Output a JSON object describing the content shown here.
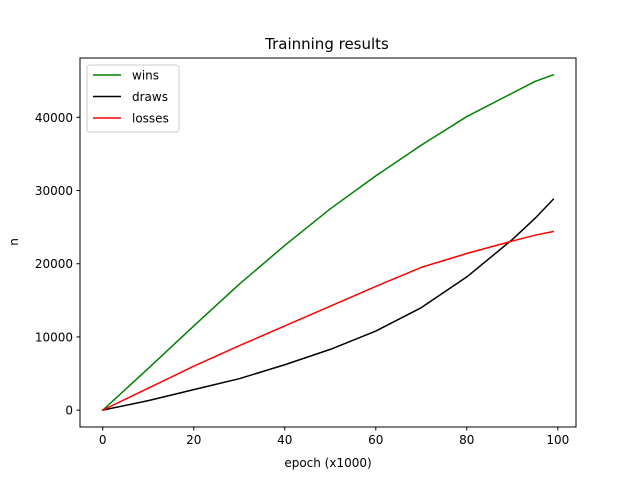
{
  "chart_data": {
    "type": "line",
    "title": "Trainning results",
    "xlabel": "epoch (x1000)",
    "ylabel": "n",
    "xlim": [
      -5,
      104
    ],
    "ylim": [
      -2300,
      48100
    ],
    "xticks": [
      0,
      20,
      40,
      60,
      80,
      100
    ],
    "yticks": [
      0,
      10000,
      20000,
      30000,
      40000
    ],
    "legend_position": "top-left",
    "grid": false,
    "x": [
      0,
      10,
      20,
      30,
      40,
      50,
      60,
      70,
      80,
      90,
      95,
      99
    ],
    "series": [
      {
        "name": "wins",
        "color": "#008000",
        "values": [
          0,
          5700,
          11500,
          17200,
          22500,
          27500,
          32000,
          36200,
          40100,
          43300,
          44900,
          45800
        ]
      },
      {
        "name": "draws",
        "color": "#000000",
        "values": [
          0,
          1300,
          2800,
          4300,
          6200,
          8300,
          10800,
          14000,
          18200,
          23300,
          26200,
          28800
        ]
      },
      {
        "name": "losses",
        "color": "#ff0000",
        "values": [
          0,
          3000,
          6000,
          8800,
          11500,
          14200,
          16900,
          19500,
          21400,
          23100,
          23900,
          24400
        ]
      }
    ]
  }
}
